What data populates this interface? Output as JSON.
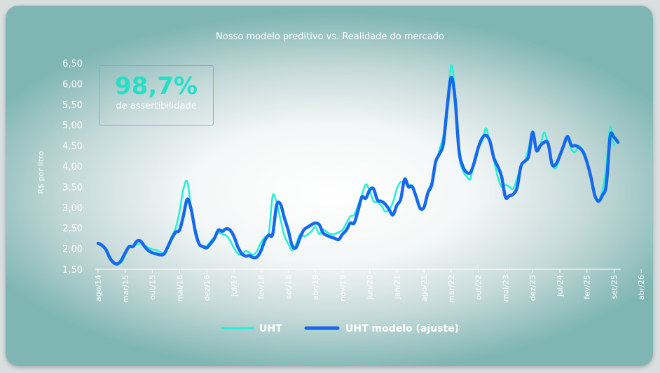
{
  "chart_data": {
    "type": "line",
    "title": "Nosso modelo preditivo vs. Realidade do mercado",
    "ylabel": "R$ por litro",
    "xlabel": "",
    "ylim": [
      1.5,
      6.5
    ],
    "yticks": [
      "6,50",
      "6,00",
      "5,50",
      "5,00",
      "4,50",
      "4,00",
      "3,50",
      "3,00",
      "2,50",
      "2,00",
      "1,50"
    ],
    "xticks": [
      "ago/14",
      "mar/15",
      "out/15",
      "mai/16",
      "dez/16",
      "jul/17",
      "fev/18",
      "set/18",
      "abr/19",
      "nov/19",
      "jun/20",
      "jan/21",
      "ago/21",
      "mar/22",
      "out/22",
      "mai/23",
      "dez/23",
      "jul/24",
      "fev/25",
      "set/25",
      "abr/26"
    ],
    "grid": false,
    "legend_position": "bottom",
    "series": [
      {
        "name": "UHT",
        "color": "#22efd7",
        "points": [
          [
            0,
            2.13
          ],
          [
            2,
            2.0
          ],
          [
            3,
            1.8
          ],
          [
            4,
            1.68
          ],
          [
            5,
            1.64
          ],
          [
            6,
            1.66
          ],
          [
            7,
            1.85
          ],
          [
            8,
            2.02
          ],
          [
            9,
            2.05
          ],
          [
            10,
            2.1
          ],
          [
            11,
            2.12
          ],
          [
            12,
            2.08
          ],
          [
            13,
            2.02
          ],
          [
            14,
            1.98
          ],
          [
            15,
            1.97
          ],
          [
            16,
            1.92
          ],
          [
            17,
            1.9
          ],
          [
            18,
            2.05
          ],
          [
            19,
            2.3
          ],
          [
            20,
            2.5
          ],
          [
            21,
            2.9
          ],
          [
            22,
            3.45
          ],
          [
            23,
            3.62
          ],
          [
            24,
            2.95
          ],
          [
            25,
            2.35
          ],
          [
            26,
            2.1
          ],
          [
            27,
            2.05
          ],
          [
            28,
            2.07
          ],
          [
            29,
            2.18
          ],
          [
            30,
            2.28
          ],
          [
            31,
            2.38
          ],
          [
            32,
            2.35
          ],
          [
            33,
            2.32
          ],
          [
            34,
            2.2
          ],
          [
            35,
            2.02
          ],
          [
            36,
            1.88
          ],
          [
            37,
            1.85
          ],
          [
            38,
            1.94
          ],
          [
            39,
            1.9
          ],
          [
            40,
            1.85
          ],
          [
            41,
            1.95
          ],
          [
            42,
            2.15
          ],
          [
            43,
            2.28
          ],
          [
            44,
            2.36
          ],
          [
            45,
            3.28
          ],
          [
            46,
            3.12
          ],
          [
            47,
            2.72
          ],
          [
            48,
            2.32
          ],
          [
            49,
            2.12
          ],
          [
            50,
            1.96
          ],
          [
            51,
            2.1
          ],
          [
            52,
            2.35
          ],
          [
            53,
            2.3
          ],
          [
            54,
            2.34
          ],
          [
            55,
            2.42
          ],
          [
            56,
            2.53
          ],
          [
            57,
            2.35
          ],
          [
            58,
            2.46
          ],
          [
            59,
            2.4
          ],
          [
            60,
            2.35
          ],
          [
            61,
            2.36
          ],
          [
            62,
            2.4
          ],
          [
            63,
            2.45
          ],
          [
            64,
            2.62
          ],
          [
            65,
            2.78
          ],
          [
            66,
            2.82
          ],
          [
            67,
            3.05
          ],
          [
            68,
            3.3
          ],
          [
            69,
            3.56
          ],
          [
            70,
            3.4
          ],
          [
            71,
            3.15
          ],
          [
            72,
            3.12
          ],
          [
            73,
            3.05
          ],
          [
            74,
            2.9
          ],
          [
            75,
            2.95
          ],
          [
            76,
            3.12
          ],
          [
            77,
            3.45
          ],
          [
            78,
            3.62
          ],
          [
            79,
            3.58
          ],
          [
            80,
            3.55
          ],
          [
            81,
            3.52
          ],
          [
            82,
            3.2
          ],
          [
            83,
            2.95
          ],
          [
            84,
            3.05
          ],
          [
            85,
            3.4
          ],
          [
            86,
            3.62
          ],
          [
            87,
            4.05
          ],
          [
            88,
            4.4
          ],
          [
            89,
            4.75
          ],
          [
            90,
            5.5
          ],
          [
            91,
            6.45
          ],
          [
            92,
            5.8
          ],
          [
            93,
            4.3
          ],
          [
            94,
            3.9
          ],
          [
            95,
            3.75
          ],
          [
            96,
            3.7
          ],
          [
            97,
            4.2
          ],
          [
            98,
            4.45
          ],
          [
            99,
            4.6
          ],
          [
            100,
            4.92
          ],
          [
            101,
            4.55
          ],
          [
            102,
            4.15
          ],
          [
            103,
            3.75
          ],
          [
            104,
            3.5
          ],
          [
            105,
            3.55
          ],
          [
            106,
            3.5
          ],
          [
            107,
            3.45
          ],
          [
            108,
            3.7
          ],
          [
            109,
            4.0
          ],
          [
            110,
            4.12
          ],
          [
            111,
            4.45
          ],
          [
            112,
            4.85
          ],
          [
            113,
            4.4
          ],
          [
            114,
            4.5
          ],
          [
            115,
            4.82
          ],
          [
            116,
            4.5
          ],
          [
            117,
            4.05
          ],
          [
            118,
            3.95
          ],
          [
            119,
            4.2
          ],
          [
            120,
            4.55
          ],
          [
            121,
            4.7
          ],
          [
            122,
            4.4
          ],
          [
            123,
            4.35
          ],
          [
            124,
            4.5
          ],
          [
            125,
            4.3
          ],
          [
            126,
            4.1
          ],
          [
            127,
            3.75
          ],
          [
            128,
            3.3
          ],
          [
            129,
            3.15
          ],
          [
            130,
            3.4
          ],
          [
            131,
            4.0
          ],
          [
            132,
            4.95
          ],
          [
            133,
            4.5
          ]
        ]
      },
      {
        "name": "UHT modelo (ajuste)",
        "color": "#1469ec",
        "points": [
          [
            0,
            2.13
          ],
          [
            1,
            2.08
          ],
          [
            2,
            1.98
          ],
          [
            3,
            1.78
          ],
          [
            4,
            1.66
          ],
          [
            5,
            1.63
          ],
          [
            6,
            1.72
          ],
          [
            7,
            1.9
          ],
          [
            8,
            2.05
          ],
          [
            9,
            2.05
          ],
          [
            10,
            2.18
          ],
          [
            11,
            2.18
          ],
          [
            12,
            2.05
          ],
          [
            13,
            1.95
          ],
          [
            14,
            1.9
          ],
          [
            15,
            1.87
          ],
          [
            16,
            1.85
          ],
          [
            17,
            1.87
          ],
          [
            18,
            2.05
          ],
          [
            19,
            2.25
          ],
          [
            20,
            2.4
          ],
          [
            21,
            2.45
          ],
          [
            22,
            2.8
          ],
          [
            23,
            3.2
          ],
          [
            24,
            2.95
          ],
          [
            25,
            2.45
          ],
          [
            26,
            2.12
          ],
          [
            27,
            2.05
          ],
          [
            28,
            2.02
          ],
          [
            29,
            2.12
          ],
          [
            30,
            2.25
          ],
          [
            31,
            2.45
          ],
          [
            32,
            2.42
          ],
          [
            33,
            2.48
          ],
          [
            34,
            2.45
          ],
          [
            35,
            2.3
          ],
          [
            36,
            2.05
          ],
          [
            37,
            1.88
          ],
          [
            38,
            1.82
          ],
          [
            39,
            1.83
          ],
          [
            40,
            1.78
          ],
          [
            41,
            1.8
          ],
          [
            42,
            1.95
          ],
          [
            43,
            2.2
          ],
          [
            44,
            2.33
          ],
          [
            45,
            2.35
          ],
          [
            46,
            3.05
          ],
          [
            47,
            3.08
          ],
          [
            48,
            2.75
          ],
          [
            49,
            2.45
          ],
          [
            50,
            2.08
          ],
          [
            51,
            2.02
          ],
          [
            52,
            2.25
          ],
          [
            53,
            2.45
          ],
          [
            54,
            2.52
          ],
          [
            55,
            2.58
          ],
          [
            56,
            2.62
          ],
          [
            57,
            2.58
          ],
          [
            58,
            2.38
          ],
          [
            59,
            2.32
          ],
          [
            60,
            2.28
          ],
          [
            61,
            2.25
          ],
          [
            62,
            2.22
          ],
          [
            63,
            2.35
          ],
          [
            64,
            2.45
          ],
          [
            65,
            2.62
          ],
          [
            66,
            2.62
          ],
          [
            67,
            2.92
          ],
          [
            68,
            3.25
          ],
          [
            69,
            3.22
          ],
          [
            70,
            3.42
          ],
          [
            71,
            3.45
          ],
          [
            72,
            3.18
          ],
          [
            73,
            3.15
          ],
          [
            74,
            3.08
          ],
          [
            75,
            2.95
          ],
          [
            76,
            2.82
          ],
          [
            77,
            3.05
          ],
          [
            78,
            3.2
          ],
          [
            79,
            3.68
          ],
          [
            80,
            3.5
          ],
          [
            81,
            3.5
          ],
          [
            82,
            3.25
          ],
          [
            83,
            2.98
          ],
          [
            84,
            3.0
          ],
          [
            85,
            3.35
          ],
          [
            86,
            3.55
          ],
          [
            87,
            4.1
          ],
          [
            88,
            4.3
          ],
          [
            89,
            4.55
          ],
          [
            90,
            5.45
          ],
          [
            91,
            6.15
          ],
          [
            92,
            5.65
          ],
          [
            93,
            4.4
          ],
          [
            94,
            4.0
          ],
          [
            95,
            3.85
          ],
          [
            96,
            3.85
          ],
          [
            97,
            4.1
          ],
          [
            98,
            4.45
          ],
          [
            99,
            4.68
          ],
          [
            100,
            4.75
          ],
          [
            101,
            4.6
          ],
          [
            102,
            4.2
          ],
          [
            103,
            4.0
          ],
          [
            104,
            3.75
          ],
          [
            105,
            3.25
          ],
          [
            106,
            3.28
          ],
          [
            107,
            3.32
          ],
          [
            108,
            3.48
          ],
          [
            109,
            4.0
          ],
          [
            110,
            4.12
          ],
          [
            111,
            4.25
          ],
          [
            112,
            4.82
          ],
          [
            113,
            4.38
          ],
          [
            114,
            4.5
          ],
          [
            115,
            4.58
          ],
          [
            116,
            4.55
          ],
          [
            117,
            4.05
          ],
          [
            118,
            4.05
          ],
          [
            119,
            4.25
          ],
          [
            120,
            4.5
          ],
          [
            121,
            4.72
          ],
          [
            122,
            4.5
          ],
          [
            123,
            4.5
          ],
          [
            124,
            4.45
          ],
          [
            125,
            4.35
          ],
          [
            126,
            4.1
          ],
          [
            127,
            3.75
          ],
          [
            128,
            3.3
          ],
          [
            129,
            3.15
          ],
          [
            130,
            3.3
          ],
          [
            131,
            3.55
          ],
          [
            132,
            4.72
          ],
          [
            133,
            4.7
          ],
          [
            134,
            4.58
          ]
        ]
      }
    ]
  },
  "kpi": {
    "value": "98,7%",
    "label": "de assertibilidade"
  }
}
